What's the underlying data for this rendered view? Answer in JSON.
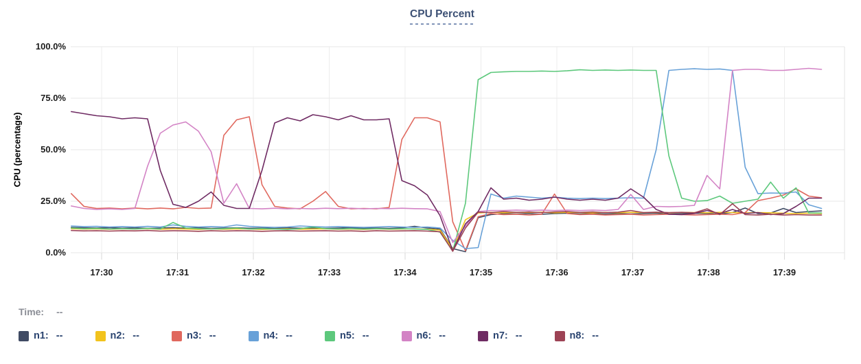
{
  "time_row": {
    "label": "Time:",
    "value": "--"
  },
  "legend": [
    {
      "name": "n1",
      "label": "n1:",
      "value": "--",
      "color": "#3f4a63"
    },
    {
      "name": "n2",
      "label": "n2:",
      "value": "--",
      "color": "#f2c31d"
    },
    {
      "name": "n3",
      "label": "n3:",
      "value": "--",
      "color": "#e0685e"
    },
    {
      "name": "n4",
      "label": "n4:",
      "value": "--",
      "color": "#68a1d8"
    },
    {
      "name": "n5",
      "label": "n5:",
      "value": "--",
      "color": "#5dc87c"
    },
    {
      "name": "n6",
      "label": "n6:",
      "value": "--",
      "color": "#d383c5"
    },
    {
      "name": "n7",
      "label": "n7:",
      "value": "--",
      "color": "#6f2b63"
    },
    {
      "name": "n8",
      "label": "n8:",
      "value": "--",
      "color": "#9d4355"
    }
  ],
  "chart_data": {
    "type": "line",
    "title": "CPU Percent",
    "ylabel": "CPU (percentage)",
    "ylim": [
      0,
      100
    ],
    "yticks": [
      100,
      75,
      50,
      25,
      0
    ],
    "ytick_labels": [
      "100.0%",
      "75.0%",
      "50.0%",
      "25.0%",
      "0.0%"
    ],
    "xtick_minutes": [
      0,
      1,
      2,
      3,
      4,
      5,
      6,
      7,
      8,
      9
    ],
    "xtick_labels": [
      "17:30",
      "17:31",
      "17:32",
      "17:33",
      "17:34",
      "17:35",
      "17:36",
      "17:37",
      "17:38",
      "17:39"
    ],
    "xlim_minutes": [
      -0.41,
      9.79
    ],
    "x_start_min": -0.4,
    "x_step_min": 0.1676,
    "grid": true,
    "legend_position": "bottom",
    "series": [
      {
        "name": "n1",
        "color": "#3f4a63",
        "values": [
          12.3,
          12.1,
          12.0,
          12.2,
          11.9,
          12.1,
          11.8,
          12.0,
          12.2,
          11.9,
          12.1,
          11.8,
          12.0,
          12.1,
          11.9,
          12.0,
          11.8,
          12.1,
          11.9,
          12.0,
          11.8,
          12.0,
          12.2,
          11.9,
          12.0,
          11.8,
          12.1,
          12.8,
          12.0,
          11.5,
          2.0,
          0.5,
          17.0,
          18.5,
          19.0,
          18.8,
          19.0,
          18.7,
          19.0,
          19.2,
          18.8,
          19.0,
          18.8,
          19.0,
          18.8,
          19.0,
          19.2,
          18.8,
          19.0,
          19.2,
          19.0,
          18.8,
          19.5,
          21.7,
          19.0,
          19.3,
          21.5,
          19.5,
          20.0,
          20.3
        ]
      },
      {
        "name": "n2",
        "color": "#f2c31d",
        "values": [
          11.7,
          11.5,
          11.6,
          11.4,
          11.6,
          11.5,
          11.7,
          11.4,
          11.6,
          11.5,
          11.3,
          11.6,
          11.4,
          11.6,
          11.5,
          11.3,
          11.5,
          11.6,
          11.4,
          11.5,
          11.6,
          11.4,
          11.5,
          11.3,
          11.6,
          11.4,
          11.5,
          11.6,
          11.4,
          11.0,
          1.7,
          16.0,
          19.3,
          19.6,
          19.4,
          19.6,
          19.5,
          19.7,
          19.4,
          19.6,
          19.5,
          19.3,
          19.6,
          19.4,
          19.6,
          19.5,
          19.6,
          19.4,
          19.6,
          19.5,
          19.4,
          19.6,
          19.5,
          19.3,
          19.5,
          19.4,
          19.2,
          19.0,
          19.2,
          19.0
        ]
      },
      {
        "name": "n3",
        "color": "#e0685e",
        "values": [
          28.7,
          22.5,
          21.5,
          21.7,
          21.3,
          21.7,
          21.3,
          21.7,
          21.3,
          22.0,
          21.5,
          21.7,
          57.0,
          64.5,
          66.0,
          33.0,
          22.5,
          21.7,
          21.3,
          25.0,
          29.7,
          22.5,
          21.3,
          21.5,
          21.3,
          22.0,
          55.0,
          65.5,
          65.5,
          63.5,
          15.0,
          1.0,
          17.5,
          19.0,
          18.5,
          18.7,
          18.3,
          18.7,
          28.5,
          19.0,
          18.5,
          18.7,
          18.3,
          18.5,
          18.7,
          18.3,
          18.5,
          18.7,
          18.5,
          18.3,
          18.5,
          18.7,
          18.5,
          19.5,
          25.3,
          26.5,
          28.0,
          31.0,
          27.5,
          26.7
        ]
      },
      {
        "name": "n4",
        "color": "#68a1d8",
        "values": [
          13.0,
          12.7,
          12.8,
          12.5,
          12.7,
          12.5,
          12.8,
          12.5,
          13.5,
          12.8,
          12.5,
          12.7,
          12.5,
          13.5,
          12.8,
          12.5,
          12.3,
          12.5,
          13.0,
          12.7,
          12.5,
          12.7,
          12.5,
          12.3,
          12.5,
          12.7,
          12.5,
          12.3,
          12.5,
          12.0,
          6.0,
          2.0,
          2.5,
          28.5,
          26.5,
          27.5,
          27.0,
          26.5,
          27.0,
          26.5,
          26.3,
          26.5,
          26.3,
          26.5,
          26.7,
          26.5,
          50.0,
          88.5,
          89.0,
          89.3,
          89.0,
          89.2,
          88.5,
          41.5,
          28.7,
          29.0,
          28.9,
          29.5,
          23.3,
          21.5
        ]
      },
      {
        "name": "n5",
        "color": "#5dc87c",
        "values": [
          12.0,
          11.7,
          11.8,
          11.5,
          11.7,
          11.5,
          11.8,
          11.5,
          14.7,
          12.0,
          11.7,
          11.5,
          11.7,
          12.0,
          11.5,
          11.7,
          11.5,
          11.3,
          11.7,
          12.5,
          11.7,
          11.5,
          11.7,
          11.5,
          11.7,
          11.5,
          11.7,
          11.5,
          11.3,
          10.0,
          0.8,
          24.0,
          84.0,
          87.5,
          87.8,
          88.0,
          88.0,
          88.2,
          88.0,
          88.3,
          88.8,
          88.5,
          88.7,
          88.5,
          88.7,
          88.5,
          88.5,
          47.0,
          26.5,
          25.0,
          25.3,
          27.5,
          24.0,
          25.0,
          26.0,
          34.3,
          26.5,
          31.5,
          19.3,
          19.3
        ]
      },
      {
        "name": "n6",
        "color": "#d383c5",
        "values": [
          22.7,
          21.5,
          21.0,
          21.3,
          21.0,
          21.5,
          42.0,
          58.0,
          62.0,
          63.5,
          59.0,
          49.0,
          24.0,
          33.5,
          21.5,
          21.3,
          21.6,
          21.3,
          21.5,
          21.3,
          21.6,
          21.4,
          21.6,
          21.3,
          21.5,
          21.4,
          21.6,
          21.4,
          21.3,
          20.0,
          5.0,
          13.0,
          20.0,
          20.5,
          20.5,
          20.7,
          20.5,
          20.7,
          20.5,
          20.7,
          20.5,
          20.7,
          20.5,
          21.0,
          28.3,
          21.0,
          22.5,
          22.3,
          22.5,
          23.0,
          37.5,
          31.0,
          88.5,
          89.0,
          89.0,
          88.5,
          88.5,
          89.0,
          89.5,
          89.0
        ]
      },
      {
        "name": "n7",
        "color": "#6f2b63",
        "values": [
          68.5,
          67.5,
          66.5,
          66.0,
          65.0,
          65.5,
          65.0,
          40.0,
          23.5,
          22.0,
          25.0,
          29.5,
          23.0,
          21.5,
          21.5,
          40.0,
          63.0,
          65.5,
          64.0,
          67.0,
          66.0,
          64.5,
          66.5,
          64.5,
          64.5,
          65.0,
          35.0,
          32.5,
          28.0,
          18.0,
          1.0,
          14.0,
          20.0,
          31.5,
          26.0,
          26.5,
          25.5,
          26.0,
          27.0,
          26.0,
          25.5,
          26.0,
          25.5,
          26.5,
          31.0,
          27.0,
          21.0,
          18.7,
          18.5,
          19.0,
          20.5,
          19.0,
          21.0,
          19.0,
          19.5,
          18.5,
          19.0,
          22.5,
          26.5,
          26.5
        ]
      },
      {
        "name": "n8",
        "color": "#9d4355",
        "values": [
          10.8,
          10.6,
          10.7,
          10.5,
          10.7,
          10.6,
          10.8,
          10.5,
          10.7,
          10.6,
          10.4,
          10.7,
          10.5,
          10.7,
          10.6,
          10.4,
          10.6,
          10.7,
          10.5,
          10.6,
          10.7,
          10.5,
          10.6,
          10.4,
          10.7,
          10.5,
          10.6,
          10.7,
          10.5,
          10.2,
          0.7,
          12.0,
          19.7,
          19.5,
          20.0,
          19.6,
          19.8,
          19.5,
          19.8,
          20.0,
          19.6,
          19.8,
          19.5,
          19.7,
          20.5,
          19.5,
          19.7,
          19.5,
          19.6,
          19.4,
          21.3,
          18.5,
          23.8,
          18.5,
          18.3,
          18.7,
          18.3,
          18.5,
          18.3,
          18.3
        ]
      }
    ]
  }
}
